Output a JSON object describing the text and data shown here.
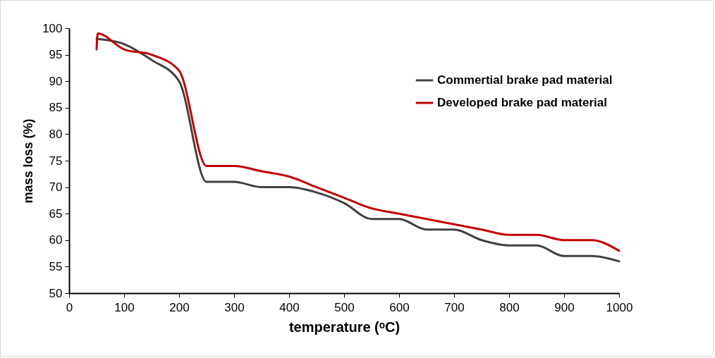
{
  "chart_data": {
    "type": "line",
    "xlabel": "temperature (ᵒC)",
    "ylabel": "mass loss (%)",
    "xlim": [
      0,
      1000
    ],
    "xticks": [
      0,
      100,
      200,
      300,
      400,
      500,
      600,
      700,
      800,
      900,
      1000
    ],
    "ylim": [
      50,
      100
    ],
    "yticks": [
      50,
      55,
      60,
      65,
      70,
      75,
      80,
      85,
      90,
      95,
      100
    ],
    "grid": false,
    "legend": "top right",
    "marker": "none",
    "line_style": "solid",
    "series": [
      {
        "name": "Commertial brake pad material",
        "color": "#404040",
        "x": [
          50,
          100,
          150,
          200,
          250,
          300,
          350,
          400,
          450,
          500,
          550,
          600,
          650,
          700,
          750,
          800,
          850,
          900,
          950,
          1000
        ],
        "values": [
          98,
          97,
          94,
          90,
          71,
          71,
          70,
          70,
          69,
          67,
          64,
          64,
          62,
          62,
          60,
          59,
          59,
          57,
          57,
          56
        ]
      },
      {
        "name": "Developed brake pad material",
        "color": "#c00000",
        "x": [
          50,
          52,
          100,
          150,
          200,
          250,
          300,
          350,
          400,
          450,
          500,
          550,
          600,
          650,
          700,
          750,
          800,
          850,
          900,
          950,
          1000
        ],
        "values": [
          96,
          99,
          96,
          95,
          92,
          74,
          74,
          73,
          72,
          70,
          68,
          66,
          65,
          64,
          63,
          62,
          61,
          61,
          60,
          60,
          58
        ]
      }
    ]
  }
}
